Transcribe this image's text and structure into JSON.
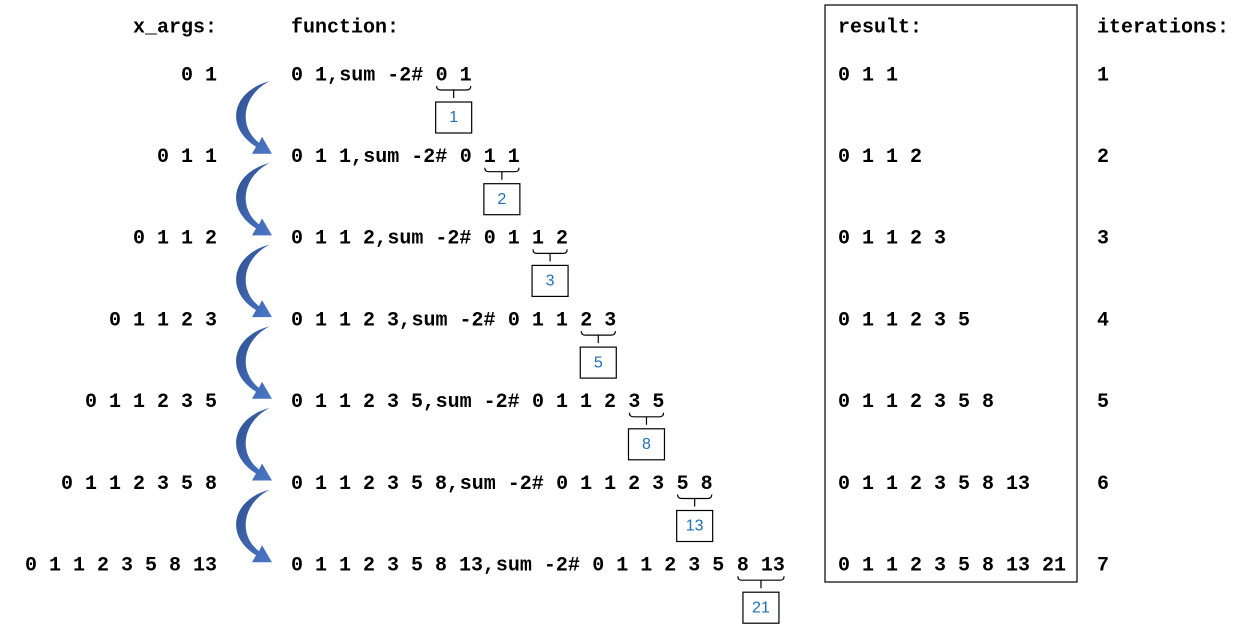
{
  "headers": {
    "x_args": "x_args:",
    "function": "function:",
    "result": "result:",
    "iterations": "iterations:"
  },
  "rows": [
    {
      "x_args": "0 1",
      "function": {
        "left": "0 1,",
        "verb": "sum -2#",
        "pair": "0 1"
      },
      "box": "1",
      "result": "0 1 1",
      "iteration": "1"
    },
    {
      "x_args": "0 1 1",
      "function": {
        "left": "0 1 1,",
        "verb": "sum -2#",
        "kept": "0",
        "pair": "1 1"
      },
      "box": "2",
      "result": "0 1 1 2",
      "iteration": "2"
    },
    {
      "x_args": "0 1 1 2",
      "function": {
        "left": "0 1 1 2,",
        "verb": "sum -2#",
        "kept": "0 1",
        "pair": "1 2"
      },
      "box": "3",
      "result": "0 1 1 2 3",
      "iteration": "3"
    },
    {
      "x_args": "0 1 1 2 3",
      "function": {
        "left": "0 1 1 2 3,",
        "verb": "sum -2#",
        "kept": "0 1 1",
        "pair": "2 3"
      },
      "box": "5",
      "result": "0 1 1 2 3 5",
      "iteration": "4"
    },
    {
      "x_args": "0 1 1 2 3 5",
      "function": {
        "left": "0 1 1 2 3 5,",
        "verb": "sum -2#",
        "kept": "0 1 1 2",
        "pair": "3 5"
      },
      "box": "8",
      "result": "0 1 1 2 3 5 8",
      "iteration": "5"
    },
    {
      "x_args": "0 1 1 2 3 5 8",
      "function": {
        "left": "0 1 1 2 3 5 8,",
        "verb": "sum -2#",
        "kept": "0 1 1 2 3",
        "pair": "5 8"
      },
      "box": "13",
      "result": "0 1 1 2 3 5 8 13",
      "iteration": "6"
    },
    {
      "x_args": "0 1 1 2 3 5 8 13",
      "function": {
        "left": "0 1 1 2 3 5 8 13,",
        "verb": "sum -2#",
        "kept": "0 1 1 2 3 5",
        "pair": "8 13"
      },
      "box": "21",
      "result": "0 1 1 2 3 5 8 13 21",
      "iteration": "7"
    }
  ]
}
